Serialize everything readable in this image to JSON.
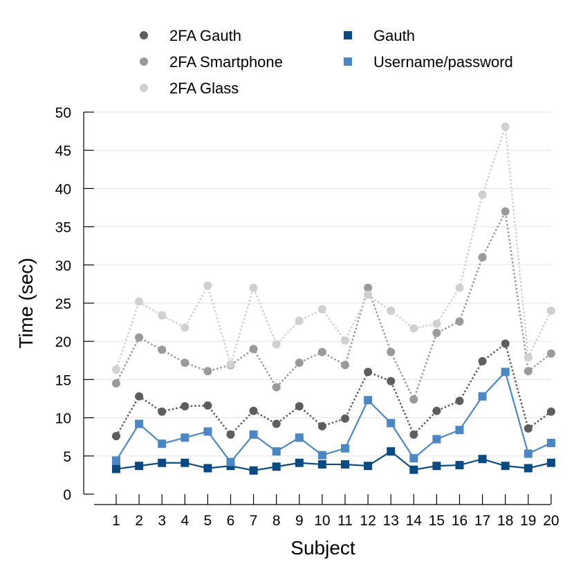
{
  "chart_data": {
    "type": "line",
    "title": "",
    "xlabel": "Subject",
    "ylabel": "Time (sec)",
    "ylim": [
      0,
      50
    ],
    "yticks": [
      0,
      5,
      10,
      15,
      20,
      25,
      30,
      35,
      40,
      45,
      50
    ],
    "grid": "horizontal",
    "legend_position": "top",
    "categories": [
      "1",
      "2",
      "3",
      "4",
      "5",
      "6",
      "7",
      "8",
      "9",
      "10",
      "11",
      "12",
      "13",
      "14",
      "15",
      "16",
      "17",
      "18",
      "19",
      "20"
    ],
    "series": [
      {
        "name": "2FA Gauth",
        "marker": "circle",
        "line": "dotted",
        "color": "#5e5e5e",
        "values": [
          7.6,
          12.8,
          10.8,
          11.5,
          11.6,
          7.8,
          10.9,
          9.2,
          11.5,
          8.9,
          9.9,
          16.0,
          14.8,
          7.8,
          10.9,
          12.2,
          17.4,
          19.7,
          8.6,
          10.8
        ]
      },
      {
        "name": "2FA Smartphone",
        "marker": "circle",
        "line": "dotted",
        "color": "#9a9a9a",
        "values": [
          14.5,
          20.5,
          18.9,
          17.2,
          16.1,
          16.9,
          19.0,
          14.0,
          17.2,
          18.6,
          16.9,
          27.0,
          18.6,
          12.4,
          21.1,
          22.6,
          31.0,
          37.0,
          16.1,
          18.4
        ]
      },
      {
        "name": "2FA Glass",
        "marker": "circle",
        "line": "dotted",
        "color": "#d0d0d0",
        "values": [
          16.3,
          25.2,
          23.4,
          21.8,
          27.3,
          17.0,
          27.0,
          19.6,
          22.7,
          24.2,
          20.1,
          26.1,
          24.0,
          21.7,
          22.3,
          27.0,
          39.2,
          48.1,
          17.9,
          24.0
        ]
      },
      {
        "name": "Gauth",
        "marker": "square",
        "line": "solid",
        "color": "#0a4a82",
        "values": [
          3.3,
          3.7,
          4.1,
          4.1,
          3.4,
          3.7,
          3.1,
          3.6,
          4.1,
          3.9,
          3.9,
          3.7,
          5.6,
          3.2,
          3.7,
          3.8,
          4.6,
          3.7,
          3.4,
          4.1
        ]
      },
      {
        "name": "Username/password",
        "marker": "square",
        "line": "solid",
        "color": "#4a87c4",
        "values": [
          4.4,
          9.2,
          6.6,
          7.4,
          8.2,
          4.2,
          7.8,
          5.6,
          7.4,
          5.1,
          6.0,
          12.3,
          9.3,
          4.7,
          7.2,
          8.4,
          12.8,
          16.0,
          5.3,
          6.7
        ]
      }
    ]
  }
}
